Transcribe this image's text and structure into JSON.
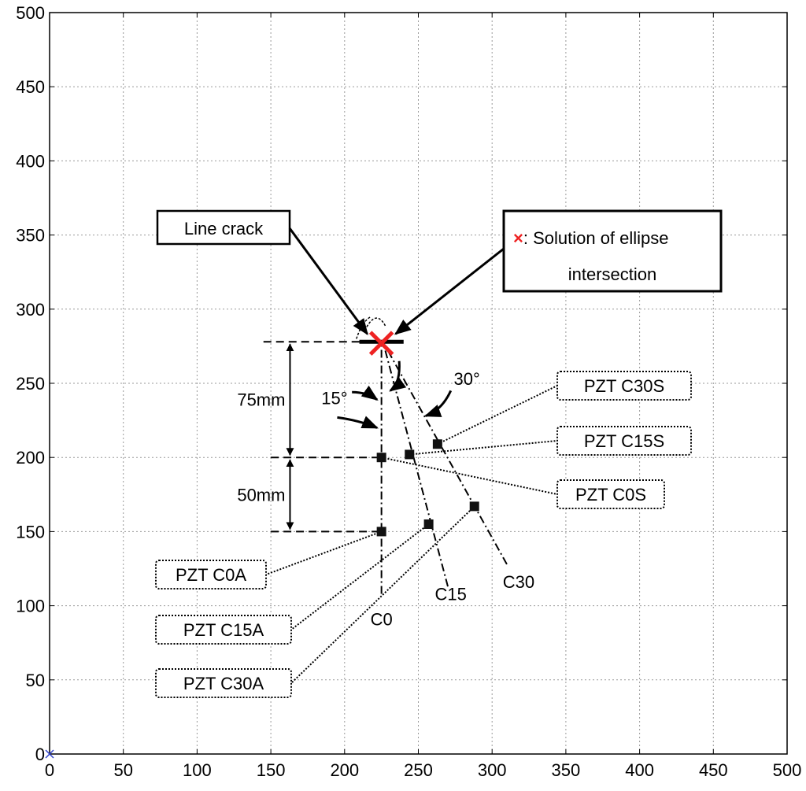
{
  "chart_data": {
    "type": "scatter",
    "xlim": [
      0,
      500
    ],
    "ylim": [
      0,
      500
    ],
    "grid": true,
    "x_ticks": [
      "0",
      "50",
      "100",
      "150",
      "200",
      "250",
      "300",
      "350",
      "400",
      "450",
      "500"
    ],
    "y_ticks": [
      "0",
      "50",
      "100",
      "150",
      "200",
      "250",
      "300",
      "350",
      "400",
      "450",
      "500"
    ],
    "sensors": [
      {
        "x": 225,
        "y": 150,
        "label": "PZT C0A"
      },
      {
        "x": 225,
        "y": 200,
        "label": "PZT C0S"
      },
      {
        "x": 257,
        "y": 155,
        "label": "PZT C15A"
      },
      {
        "x": 244,
        "y": 202,
        "label": "PZT C15S"
      },
      {
        "x": 288,
        "y": 167,
        "label": "PZT C30A"
      },
      {
        "x": 263,
        "y": 209,
        "label": "PZT C30S"
      }
    ],
    "paths": [
      {
        "label": "C0",
        "points": [
          [
            225,
            108
          ],
          [
            225,
            278
          ]
        ]
      },
      {
        "label": "C15",
        "points": [
          [
            270,
            113
          ],
          [
            226,
            278
          ]
        ]
      },
      {
        "label": "C30",
        "points": [
          [
            310,
            128
          ],
          [
            226,
            278
          ]
        ]
      }
    ],
    "crack": {
      "x1": 210,
      "x2": 240,
      "y": 278
    },
    "solution": {
      "x": 225,
      "y": 277
    },
    "origin_marker": {
      "x": 0,
      "y": 0
    },
    "annotations": {
      "line_crack": "Line crack",
      "solution_prefix": "×",
      "solution_line1": ": Solution of ellipse",
      "solution_line2": "intersection",
      "dim_75": "75mm",
      "dim_50": "50mm",
      "angle_15": "15°",
      "angle_30": "30°",
      "path_c0": "C0",
      "path_c15": "C15",
      "path_c30": "C30"
    },
    "colors": {
      "solution": "#ee2222",
      "origin": "#3344cc"
    }
  }
}
